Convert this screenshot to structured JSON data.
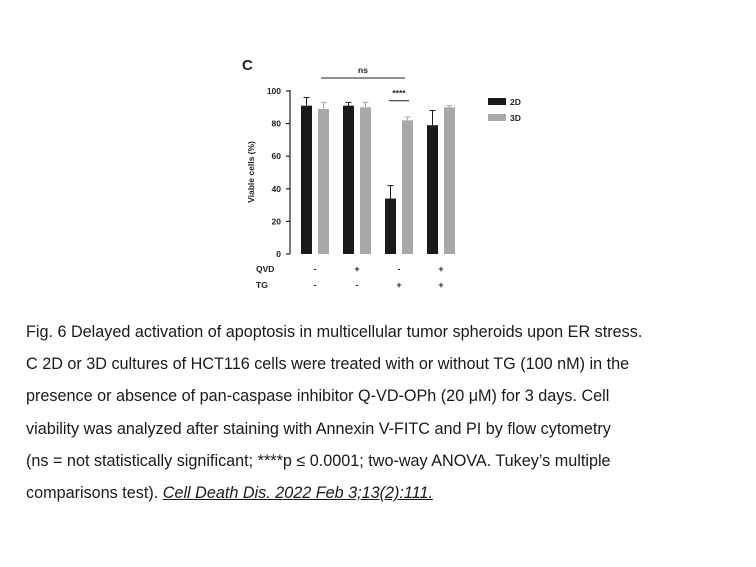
{
  "chart_data": {
    "type": "bar",
    "panel_label": "C",
    "ylabel": "Viable cells (%)",
    "ylim": [
      0,
      100
    ],
    "yticks": [
      0,
      20,
      40,
      60,
      80,
      100
    ],
    "categories": [
      "QVD-/TG-",
      "QVD+/TG-",
      "QVD-/TG+",
      "QVD+/TG+"
    ],
    "row_labels": [
      "QVD",
      "TG"
    ],
    "conditions": {
      "QVD": [
        "-",
        "+",
        "-",
        "+"
      ],
      "TG": [
        "-",
        "-",
        "+",
        "+"
      ]
    },
    "series": [
      {
        "name": "2D",
        "color": "#1a1a1a",
        "values": [
          91,
          91,
          34,
          79
        ],
        "errors": [
          5,
          2,
          8,
          9
        ]
      },
      {
        "name": "3D",
        "color": "#a8a8a8",
        "values": [
          89,
          90,
          82,
          90
        ],
        "errors": [
          4,
          3,
          2,
          1
        ]
      }
    ],
    "legend_position": "top-right",
    "annotations": [
      {
        "text": "ns",
        "from_category": 0,
        "to_category": 2,
        "level": 108
      },
      {
        "text": "****",
        "from_category": 2,
        "to_category": 2,
        "level": 94
      }
    ],
    "grid": false
  },
  "caption": {
    "lines": [
      "Fig. 6 Delayed activation of apoptosis in multicellular tumor spheroids upon ER stress.",
      "C 2D or 3D cultures of HCT116 cells were treated with or without TG (100 nM) in the",
      "presence or absence of pan-caspase inhibitor Q-VD-OPh (20 μM) for 3 days. Cell",
      "viability was analyzed after staining with Annexin V-FITC and PI by flow cytometry",
      "(ns = not statistically significant; ****p ≤ 0.0001; two-way ANOVA. Tukey’s multiple"
    ],
    "last_line_text": "comparisons test). ",
    "citation": "Cell Death Dis. 2022 Feb 3;13(2):111."
  }
}
